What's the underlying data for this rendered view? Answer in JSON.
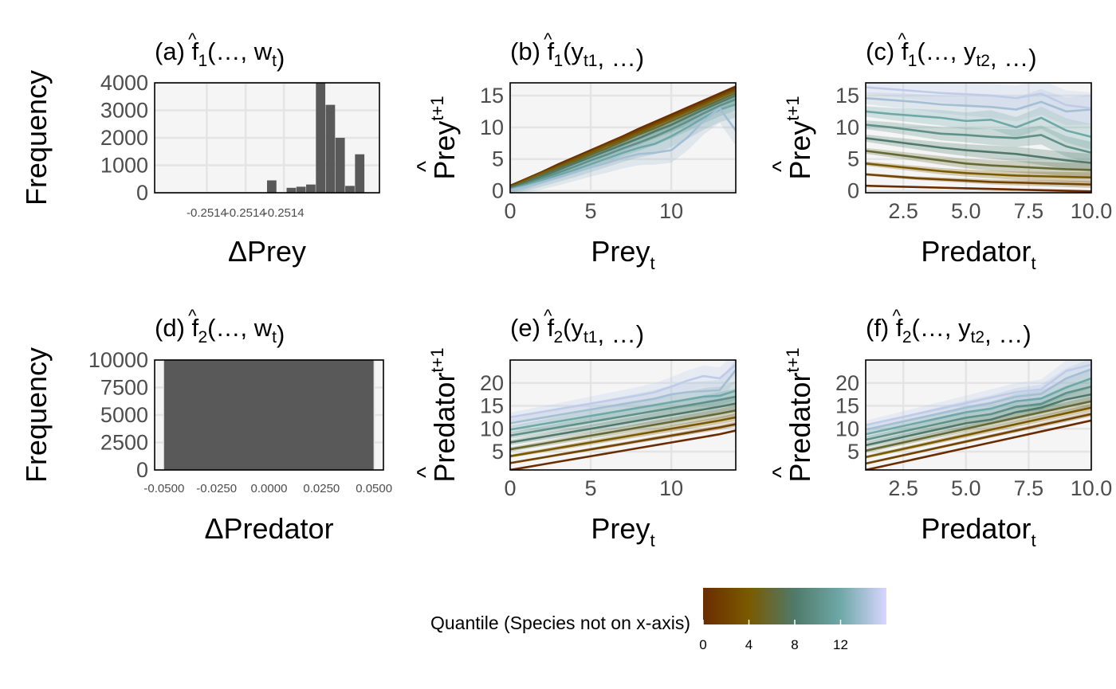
{
  "colorbar": {
    "title": "Quantile (Species not on x-axis)",
    "ticks": [
      0,
      4,
      8,
      12
    ],
    "range": [
      0,
      16
    ],
    "colors": [
      "#6b2c00",
      "#7a5a00",
      "#4f7a6a",
      "#6fa8a8",
      "#d8d6ff"
    ]
  },
  "chart_data": [
    {
      "id": "a",
      "type": "bar",
      "title": "(a) f̂1(…, wt)",
      "ylabel": "Frequency",
      "xlabel": "ΔPrey",
      "xticks": [
        "-0.2514",
        "-0.2514",
        "-0.2514"
      ],
      "yticks": [
        "0",
        "1000",
        "2000",
        "3000",
        "4000"
      ],
      "ylim": [
        0,
        4000
      ],
      "xlim": [
        -0.24,
        0.22
      ],
      "bin_width": 0.02,
      "bins": [
        {
          "x": 0.0,
          "count": 450
        },
        {
          "x": 0.04,
          "count": 180
        },
        {
          "x": 0.06,
          "count": 220
        },
        {
          "x": 0.08,
          "count": 300
        },
        {
          "x": 0.1,
          "count": 4000
        },
        {
          "x": 0.12,
          "count": 3200
        },
        {
          "x": 0.14,
          "count": 2000
        },
        {
          "x": 0.16,
          "count": 250
        },
        {
          "x": 0.18,
          "count": 1400
        }
      ]
    },
    {
      "id": "b",
      "type": "line",
      "title": "(b) f̂1(yt1, …)",
      "ylabel": "Prey^t+1",
      "xlabel": "Prey_t",
      "xticks": [
        "0",
        "5",
        "10"
      ],
      "yticks": [
        "0",
        "5",
        "10",
        "15"
      ],
      "xlim": [
        0,
        14
      ],
      "ylim": [
        -0.3,
        17
      ],
      "x": [
        0,
        1,
        2,
        3,
        4,
        5,
        6,
        7,
        8,
        9,
        10,
        11,
        12,
        13,
        14
      ],
      "series": [
        {
          "quantile": 0,
          "values": [
            0.8,
            1.9,
            3.0,
            4.2,
            5.3,
            6.4,
            7.5,
            8.6,
            9.8,
            10.9,
            12.0,
            13.1,
            14.2,
            15.3,
            16.4
          ]
        },
        {
          "quantile": 2,
          "values": [
            0.7,
            1.8,
            2.9,
            4.0,
            5.1,
            6.2,
            7.3,
            8.4,
            9.5,
            10.6,
            11.7,
            12.8,
            13.9,
            15.0,
            16.1
          ]
        },
        {
          "quantile": 4,
          "values": [
            0.6,
            1.7,
            2.8,
            3.8,
            4.9,
            6.0,
            7.1,
            8.1,
            9.2,
            10.3,
            11.4,
            12.5,
            13.6,
            14.7,
            15.8
          ]
        },
        {
          "quantile": 6,
          "values": [
            0.5,
            1.5,
            2.6,
            3.6,
            4.6,
            5.7,
            6.7,
            7.8,
            8.9,
            9.9,
            11.0,
            12.1,
            13.2,
            14.3,
            15.4
          ]
        },
        {
          "quantile": 8,
          "values": [
            0.4,
            1.3,
            2.3,
            3.3,
            4.3,
            5.3,
            6.3,
            7.3,
            8.3,
            9.4,
            10.4,
            11.6,
            12.8,
            13.9,
            15.0
          ]
        },
        {
          "quantile": 10,
          "values": [
            0.3,
            1.1,
            2.0,
            2.9,
            3.8,
            4.8,
            5.7,
            6.7,
            7.6,
            8.6,
            9.7,
            10.9,
            12.2,
            13.4,
            14.4
          ]
        },
        {
          "quantile": 12,
          "values": [
            0.2,
            0.9,
            1.7,
            2.5,
            3.3,
            4.2,
            5.1,
            6.0,
            6.8,
            7.4,
            8.6,
            10.0,
            11.5,
            12.8,
            13.6
          ]
        },
        {
          "quantile": 14,
          "values": [
            0.1,
            0.7,
            1.4,
            2.1,
            2.9,
            3.7,
            4.4,
            5.2,
            5.8,
            6.0,
            6.4,
            8.4,
            11.0,
            13.0,
            9.5
          ]
        }
      ]
    },
    {
      "id": "c",
      "type": "line",
      "title": "(c) f̂1(…, yt2, …)",
      "ylabel": "Prey^t+1",
      "xlabel": "Predator_t",
      "xticks": [
        "2.5",
        "5.0",
        "7.5",
        "10.0"
      ],
      "yticks": [
        "0",
        "5",
        "10",
        "15"
      ],
      "xlim": [
        1,
        10
      ],
      "ylim": [
        -0.3,
        17
      ],
      "x": [
        1,
        2,
        3,
        4,
        5,
        6,
        7,
        8,
        9,
        10
      ],
      "series": [
        {
          "quantile": 0,
          "values": [
            0.8,
            0.7,
            0.6,
            0.5,
            0.4,
            0.3,
            0.2,
            0.1,
            0.0,
            -0.1
          ]
        },
        {
          "quantile": 2,
          "values": [
            2.6,
            2.3,
            2.0,
            1.8,
            1.6,
            1.4,
            1.3,
            1.2,
            1.1,
            1.0
          ]
        },
        {
          "quantile": 4,
          "values": [
            4.3,
            3.9,
            3.5,
            3.1,
            2.8,
            2.6,
            2.4,
            2.3,
            2.2,
            2.1
          ]
        },
        {
          "quantile": 6,
          "values": [
            6.3,
            5.8,
            5.3,
            4.8,
            4.3,
            4.0,
            3.8,
            3.6,
            3.4,
            3.3
          ]
        },
        {
          "quantile": 8,
          "values": [
            8.3,
            7.8,
            7.3,
            6.8,
            6.4,
            6.1,
            5.8,
            5.3,
            4.8,
            4.4
          ]
        },
        {
          "quantile": 10,
          "values": [
            10.4,
            10.0,
            9.5,
            9.0,
            8.8,
            8.5,
            8.3,
            8.8,
            7.0,
            6.0
          ]
        },
        {
          "quantile": 12,
          "values": [
            12.5,
            12.1,
            11.8,
            11.5,
            11.0,
            11.2,
            10.0,
            11.5,
            9.5,
            8.5
          ]
        },
        {
          "quantile": 14,
          "values": [
            14.6,
            14.3,
            14.0,
            13.6,
            13.4,
            13.2,
            12.8,
            14.0,
            12.5,
            12.8
          ]
        },
        {
          "quantile": 15,
          "values": [
            16.3,
            16.0,
            15.7,
            15.4,
            15.2,
            15.0,
            14.6,
            15.3,
            13.5,
            13.0
          ]
        }
      ]
    },
    {
      "id": "d",
      "type": "bar",
      "title": "(d) f̂2(…, wt)",
      "ylabel": "Frequency",
      "xlabel": "ΔPredator",
      "xticks": [
        "-0.0500",
        "-0.0250",
        "0.0000",
        "0.0250",
        "0.0500"
      ],
      "yticks": [
        "0",
        "2500",
        "5000",
        "7500",
        "10000"
      ],
      "ylim": [
        0,
        10000
      ],
      "xlim": [
        -0.0545,
        0.0545
      ],
      "bin_width": 0.1,
      "bins": [
        {
          "x": 0.0,
          "count": 10000
        }
      ]
    },
    {
      "id": "e",
      "type": "line",
      "title": "(e) f̂2(yt1, …)",
      "ylabel": "Predator^t+1",
      "xlabel": "Prey_t",
      "xticks": [
        "0",
        "5",
        "10"
      ],
      "yticks": [
        "5",
        "10",
        "15",
        "20"
      ],
      "xlim": [
        0,
        14
      ],
      "ylim": [
        1,
        25
      ],
      "x": [
        0,
        1,
        2,
        3,
        4,
        5,
        6,
        7,
        8,
        9,
        10,
        11,
        12,
        13,
        14
      ],
      "series": [
        {
          "quantile": 0,
          "values": [
            1.0,
            1.6,
            2.2,
            2.8,
            3.4,
            4.0,
            4.6,
            5.2,
            5.8,
            6.4,
            7.0,
            7.6,
            8.2,
            8.8,
            9.6
          ]
        },
        {
          "quantile": 2,
          "values": [
            2.5,
            3.1,
            3.7,
            4.3,
            4.9,
            5.5,
            6.1,
            6.7,
            7.3,
            7.9,
            8.5,
            9.1,
            9.7,
            10.3,
            11.0
          ]
        },
        {
          "quantile": 4,
          "values": [
            4.0,
            4.6,
            5.2,
            5.8,
            6.4,
            7.0,
            7.6,
            8.2,
            8.8,
            9.4,
            10.0,
            10.6,
            11.2,
            11.8,
            12.5
          ]
        },
        {
          "quantile": 6,
          "values": [
            5.5,
            6.1,
            6.7,
            7.3,
            7.9,
            8.5,
            9.1,
            9.7,
            10.3,
            10.9,
            11.5,
            12.1,
            12.7,
            13.3,
            14.0
          ]
        },
        {
          "quantile": 8,
          "values": [
            7.0,
            7.6,
            8.2,
            8.8,
            9.4,
            10.0,
            10.6,
            11.2,
            11.8,
            12.4,
            13.0,
            13.6,
            14.2,
            14.8,
            15.5
          ]
        },
        {
          "quantile": 10,
          "values": [
            8.5,
            9.1,
            9.7,
            10.3,
            10.9,
            11.5,
            12.1,
            12.7,
            13.3,
            13.9,
            14.5,
            15.1,
            15.7,
            16.3,
            17.0
          ]
        },
        {
          "quantile": 12,
          "values": [
            9.8,
            10.4,
            11.0,
            11.6,
            12.2,
            12.8,
            13.4,
            14.0,
            14.6,
            15.2,
            15.8,
            16.4,
            17.0,
            17.2,
            18.3
          ]
        },
        {
          "quantile": 14,
          "values": [
            11.2,
            11.8,
            12.4,
            13.0,
            13.6,
            14.2,
            14.8,
            15.4,
            16.0,
            16.6,
            17.5,
            18.0,
            18.2,
            18.4,
            22.8
          ]
        },
        {
          "quantile": 15,
          "values": [
            12.5,
            13.1,
            13.7,
            14.3,
            14.9,
            15.5,
            16.1,
            16.7,
            17.3,
            18.0,
            19.2,
            20.5,
            21.5,
            21.0,
            24.0
          ]
        }
      ]
    },
    {
      "id": "f",
      "type": "line",
      "title": "(f) f̂2(…, yt2, …)",
      "ylabel": "Predator^t+1",
      "xlabel": "Predator_t",
      "xticks": [
        "2.5",
        "5.0",
        "7.5",
        "10.0"
      ],
      "yticks": [
        "5",
        "10",
        "15",
        "20"
      ],
      "xlim": [
        1,
        10
      ],
      "ylim": [
        1,
        25
      ],
      "x": [
        1,
        2,
        3,
        4,
        5,
        6,
        7,
        8,
        9,
        10
      ],
      "series": [
        {
          "quantile": 0,
          "values": [
            1.0,
            2.2,
            3.4,
            4.6,
            5.8,
            7.0,
            8.2,
            9.4,
            10.6,
            11.8
          ]
        },
        {
          "quantile": 2,
          "values": [
            2.4,
            3.6,
            4.8,
            6.0,
            7.2,
            8.4,
            9.6,
            10.8,
            12.0,
            13.2
          ]
        },
        {
          "quantile": 4,
          "values": [
            3.8,
            5.0,
            6.2,
            7.4,
            8.6,
            9.8,
            11.0,
            12.2,
            13.4,
            14.6
          ]
        },
        {
          "quantile": 6,
          "values": [
            5.2,
            6.4,
            7.6,
            8.8,
            10.0,
            11.2,
            12.4,
            13.6,
            14.8,
            16.0
          ]
        },
        {
          "quantile": 8,
          "values": [
            6.4,
            7.6,
            8.8,
            10.0,
            11.2,
            12.0,
            13.6,
            14.6,
            16.4,
            17.5
          ]
        },
        {
          "quantile": 10,
          "values": [
            7.6,
            8.8,
            10.0,
            11.2,
            12.4,
            13.2,
            14.8,
            15.4,
            17.8,
            19.2
          ]
        },
        {
          "quantile": 12,
          "values": [
            8.8,
            10.0,
            11.2,
            12.4,
            13.6,
            14.4,
            16.0,
            16.6,
            19.0,
            21.0
          ]
        },
        {
          "quantile": 14,
          "values": [
            9.8,
            11.0,
            12.2,
            13.4,
            14.6,
            15.6,
            17.0,
            17.6,
            21.0,
            23.0
          ]
        },
        {
          "quantile": 15,
          "values": [
            10.8,
            12.0,
            13.2,
            14.4,
            15.6,
            16.8,
            18.0,
            18.6,
            22.6,
            24.0
          ]
        }
      ]
    }
  ]
}
